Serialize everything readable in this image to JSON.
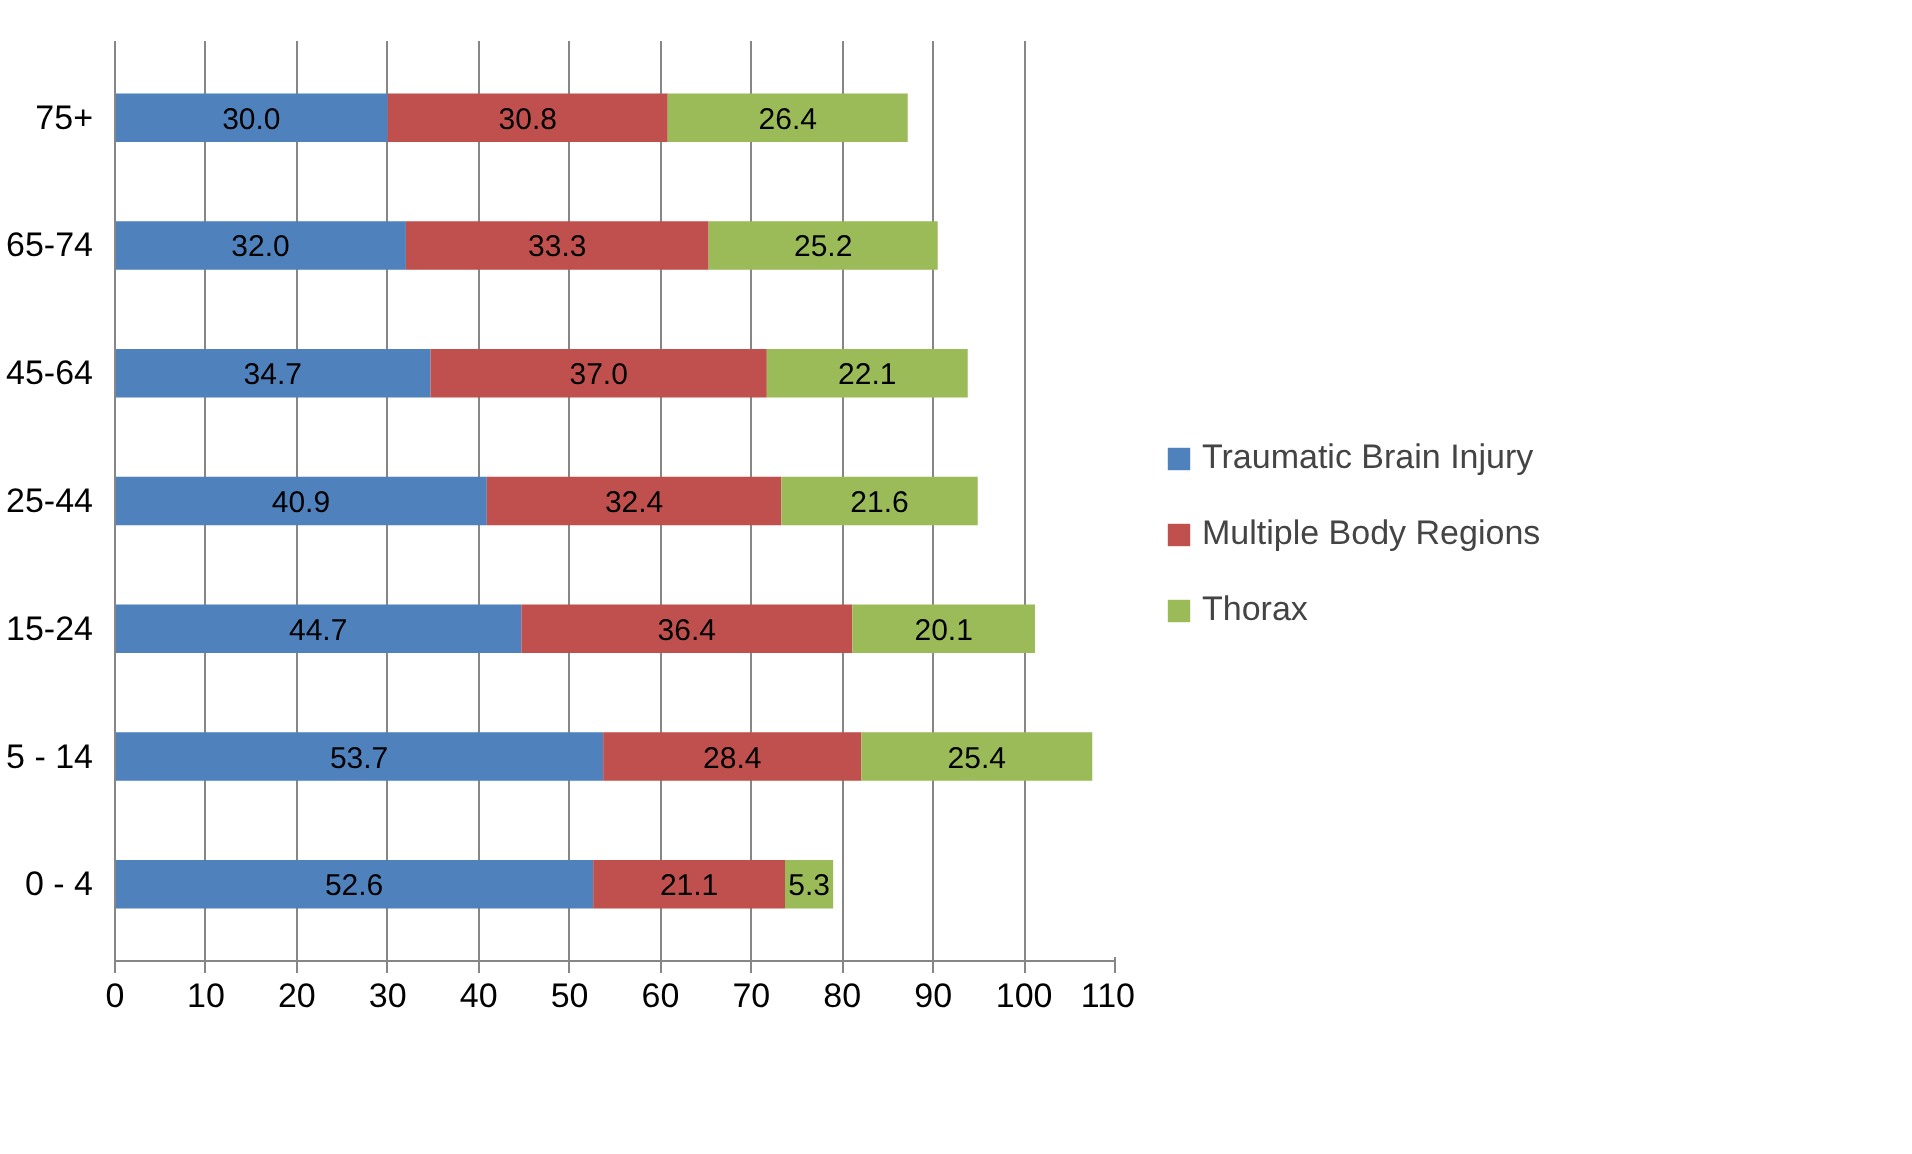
{
  "chart_data": {
    "type": "bar",
    "orientation": "horizontal",
    "stacked": true,
    "grid": "x",
    "legend": "right",
    "categories": [
      "75+",
      "65-74",
      "45-64",
      "25-44",
      "15-24",
      "5 - 14",
      "0 - 4"
    ],
    "series": [
      {
        "name": "Traumatic Brain Injury",
        "color": "#4f81bd",
        "values": [
          30.0,
          32.0,
          34.7,
          40.9,
          44.7,
          53.7,
          52.6
        ],
        "value_labels": [
          "30.0",
          "32.0",
          "34.7",
          "40.9",
          "44.7",
          "53.7",
          "52.6"
        ]
      },
      {
        "name": "Multiple Body Regions",
        "color": "#c0504d",
        "values": [
          30.8,
          33.3,
          37.0,
          32.4,
          36.4,
          28.4,
          21.1
        ],
        "value_labels": [
          "30.8",
          "33.3",
          "37.0",
          "32.4",
          "36.4",
          "28.4",
          "21.1"
        ]
      },
      {
        "name": "Thorax",
        "color": "#9bbb59",
        "values": [
          26.4,
          25.2,
          22.1,
          21.6,
          20.1,
          25.4,
          5.3
        ],
        "value_labels": [
          "26.4",
          "25.2",
          "22.1",
          "21.6",
          "20.1",
          "25.4",
          "5.3"
        ]
      }
    ],
    "xlim": [
      0,
      110
    ],
    "xticks": [
      0,
      10,
      20,
      30,
      40,
      50,
      60,
      70,
      80,
      90,
      100,
      110
    ]
  }
}
